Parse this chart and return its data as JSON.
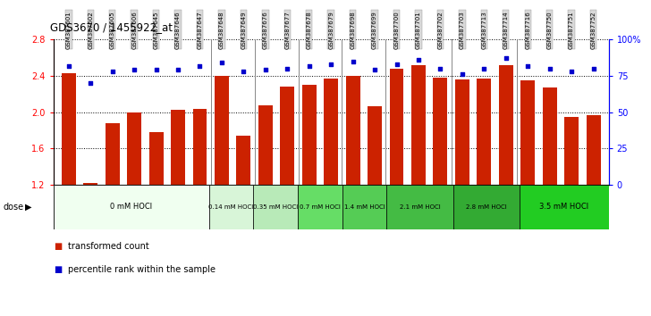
{
  "title": "GDS3670 / 1455922_at",
  "samples": [
    "GSM387601",
    "GSM387602",
    "GSM387605",
    "GSM387606",
    "GSM387645",
    "GSM387646",
    "GSM387647",
    "GSM387648",
    "GSM387649",
    "GSM387676",
    "GSM387677",
    "GSM387678",
    "GSM387679",
    "GSM387698",
    "GSM387699",
    "GSM387700",
    "GSM387701",
    "GSM387702",
    "GSM387703",
    "GSM387713",
    "GSM387714",
    "GSM387716",
    "GSM387750",
    "GSM387751",
    "GSM387752"
  ],
  "red_values": [
    2.43,
    1.22,
    1.88,
    2.0,
    1.78,
    2.03,
    2.04,
    2.4,
    1.74,
    2.08,
    2.28,
    2.3,
    2.37,
    2.4,
    2.07,
    2.48,
    2.52,
    2.38,
    2.36,
    2.37,
    2.52,
    2.35,
    2.27,
    1.95,
    1.97
  ],
  "blue_values": [
    82,
    70,
    78,
    79,
    79,
    79,
    82,
    84,
    78,
    79,
    80,
    82,
    83,
    85,
    79,
    83,
    86,
    80,
    76,
    80,
    87,
    82,
    80,
    78,
    80
  ],
  "dose_groups": [
    {
      "label": "0 mM HOCl",
      "start": 0,
      "end": 7,
      "color": "#f0fff0"
    },
    {
      "label": "0.14 mM HOCl",
      "start": 7,
      "end": 9,
      "color": "#d8f5d8"
    },
    {
      "label": "0.35 mM HOCl",
      "start": 9,
      "end": 11,
      "color": "#b8eab8"
    },
    {
      "label": "0.7 mM HOCl",
      "start": 11,
      "end": 13,
      "color": "#66dd66"
    },
    {
      "label": "1.4 mM HOCl",
      "start": 13,
      "end": 15,
      "color": "#55cc55"
    },
    {
      "label": "2.1 mM HOCl",
      "start": 15,
      "end": 18,
      "color": "#44bb44"
    },
    {
      "label": "2.8 mM HOCl",
      "start": 18,
      "end": 21,
      "color": "#33aa33"
    },
    {
      "label": "3.5 mM HOCl",
      "start": 21,
      "end": 25,
      "color": "#22cc22"
    }
  ],
  "ylim_left": [
    1.2,
    2.8
  ],
  "ylim_right": [
    0,
    100
  ],
  "yticks_left": [
    1.2,
    1.6,
    2.0,
    2.4,
    2.8
  ],
  "yticks_right": [
    0,
    25,
    50,
    75,
    100
  ],
  "bar_color": "#cc2200",
  "dot_color": "#0000cc",
  "bar_bottom": 1.2
}
